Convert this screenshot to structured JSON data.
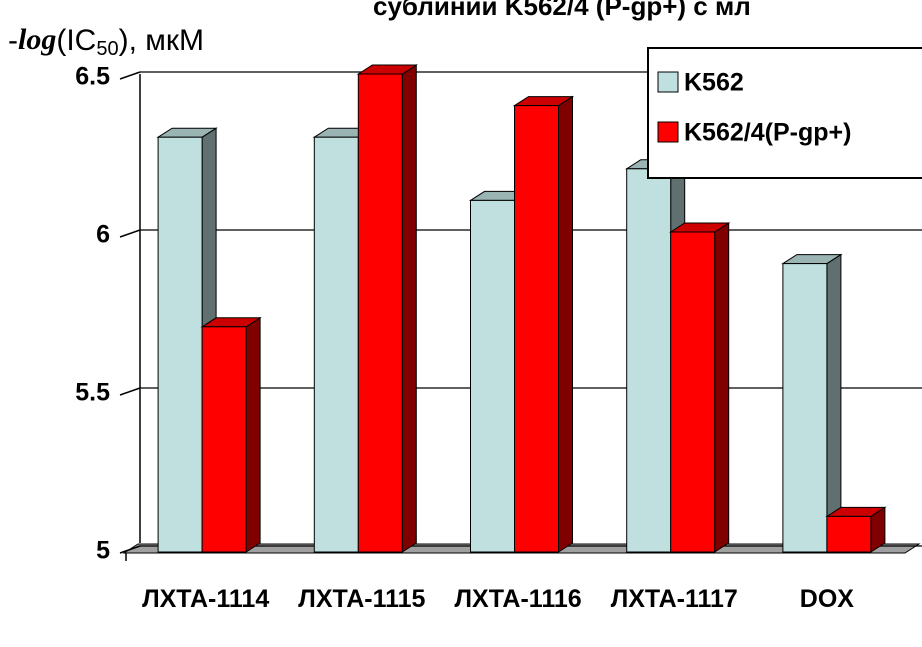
{
  "chart_data": {
    "type": "bar3d",
    "title": "сублиний K562/4 (P-gp+) с мл",
    "ylabel_parts": [
      "-",
      "log",
      "(IC",
      "50",
      "), мкМ"
    ],
    "categories": [
      "ЛХТА-1114",
      "ЛХТА-1115",
      "ЛХТА-1116",
      "ЛХТА-1117",
      "DOX"
    ],
    "series": [
      {
        "name": "K562",
        "color": "#c0e0e0",
        "values": [
          6.3,
          6.3,
          6.1,
          6.2,
          5.9
        ]
      },
      {
        "name": "K562/4(P-gp+)",
        "color": "#ff0000",
        "values": [
          5.7,
          6.5,
          6.4,
          6.0,
          5.1
        ]
      }
    ],
    "ylim": [
      5,
      6.5
    ],
    "yticks": [
      5,
      5.5,
      6,
      6.5
    ],
    "grid": true,
    "legend": "top-right"
  }
}
